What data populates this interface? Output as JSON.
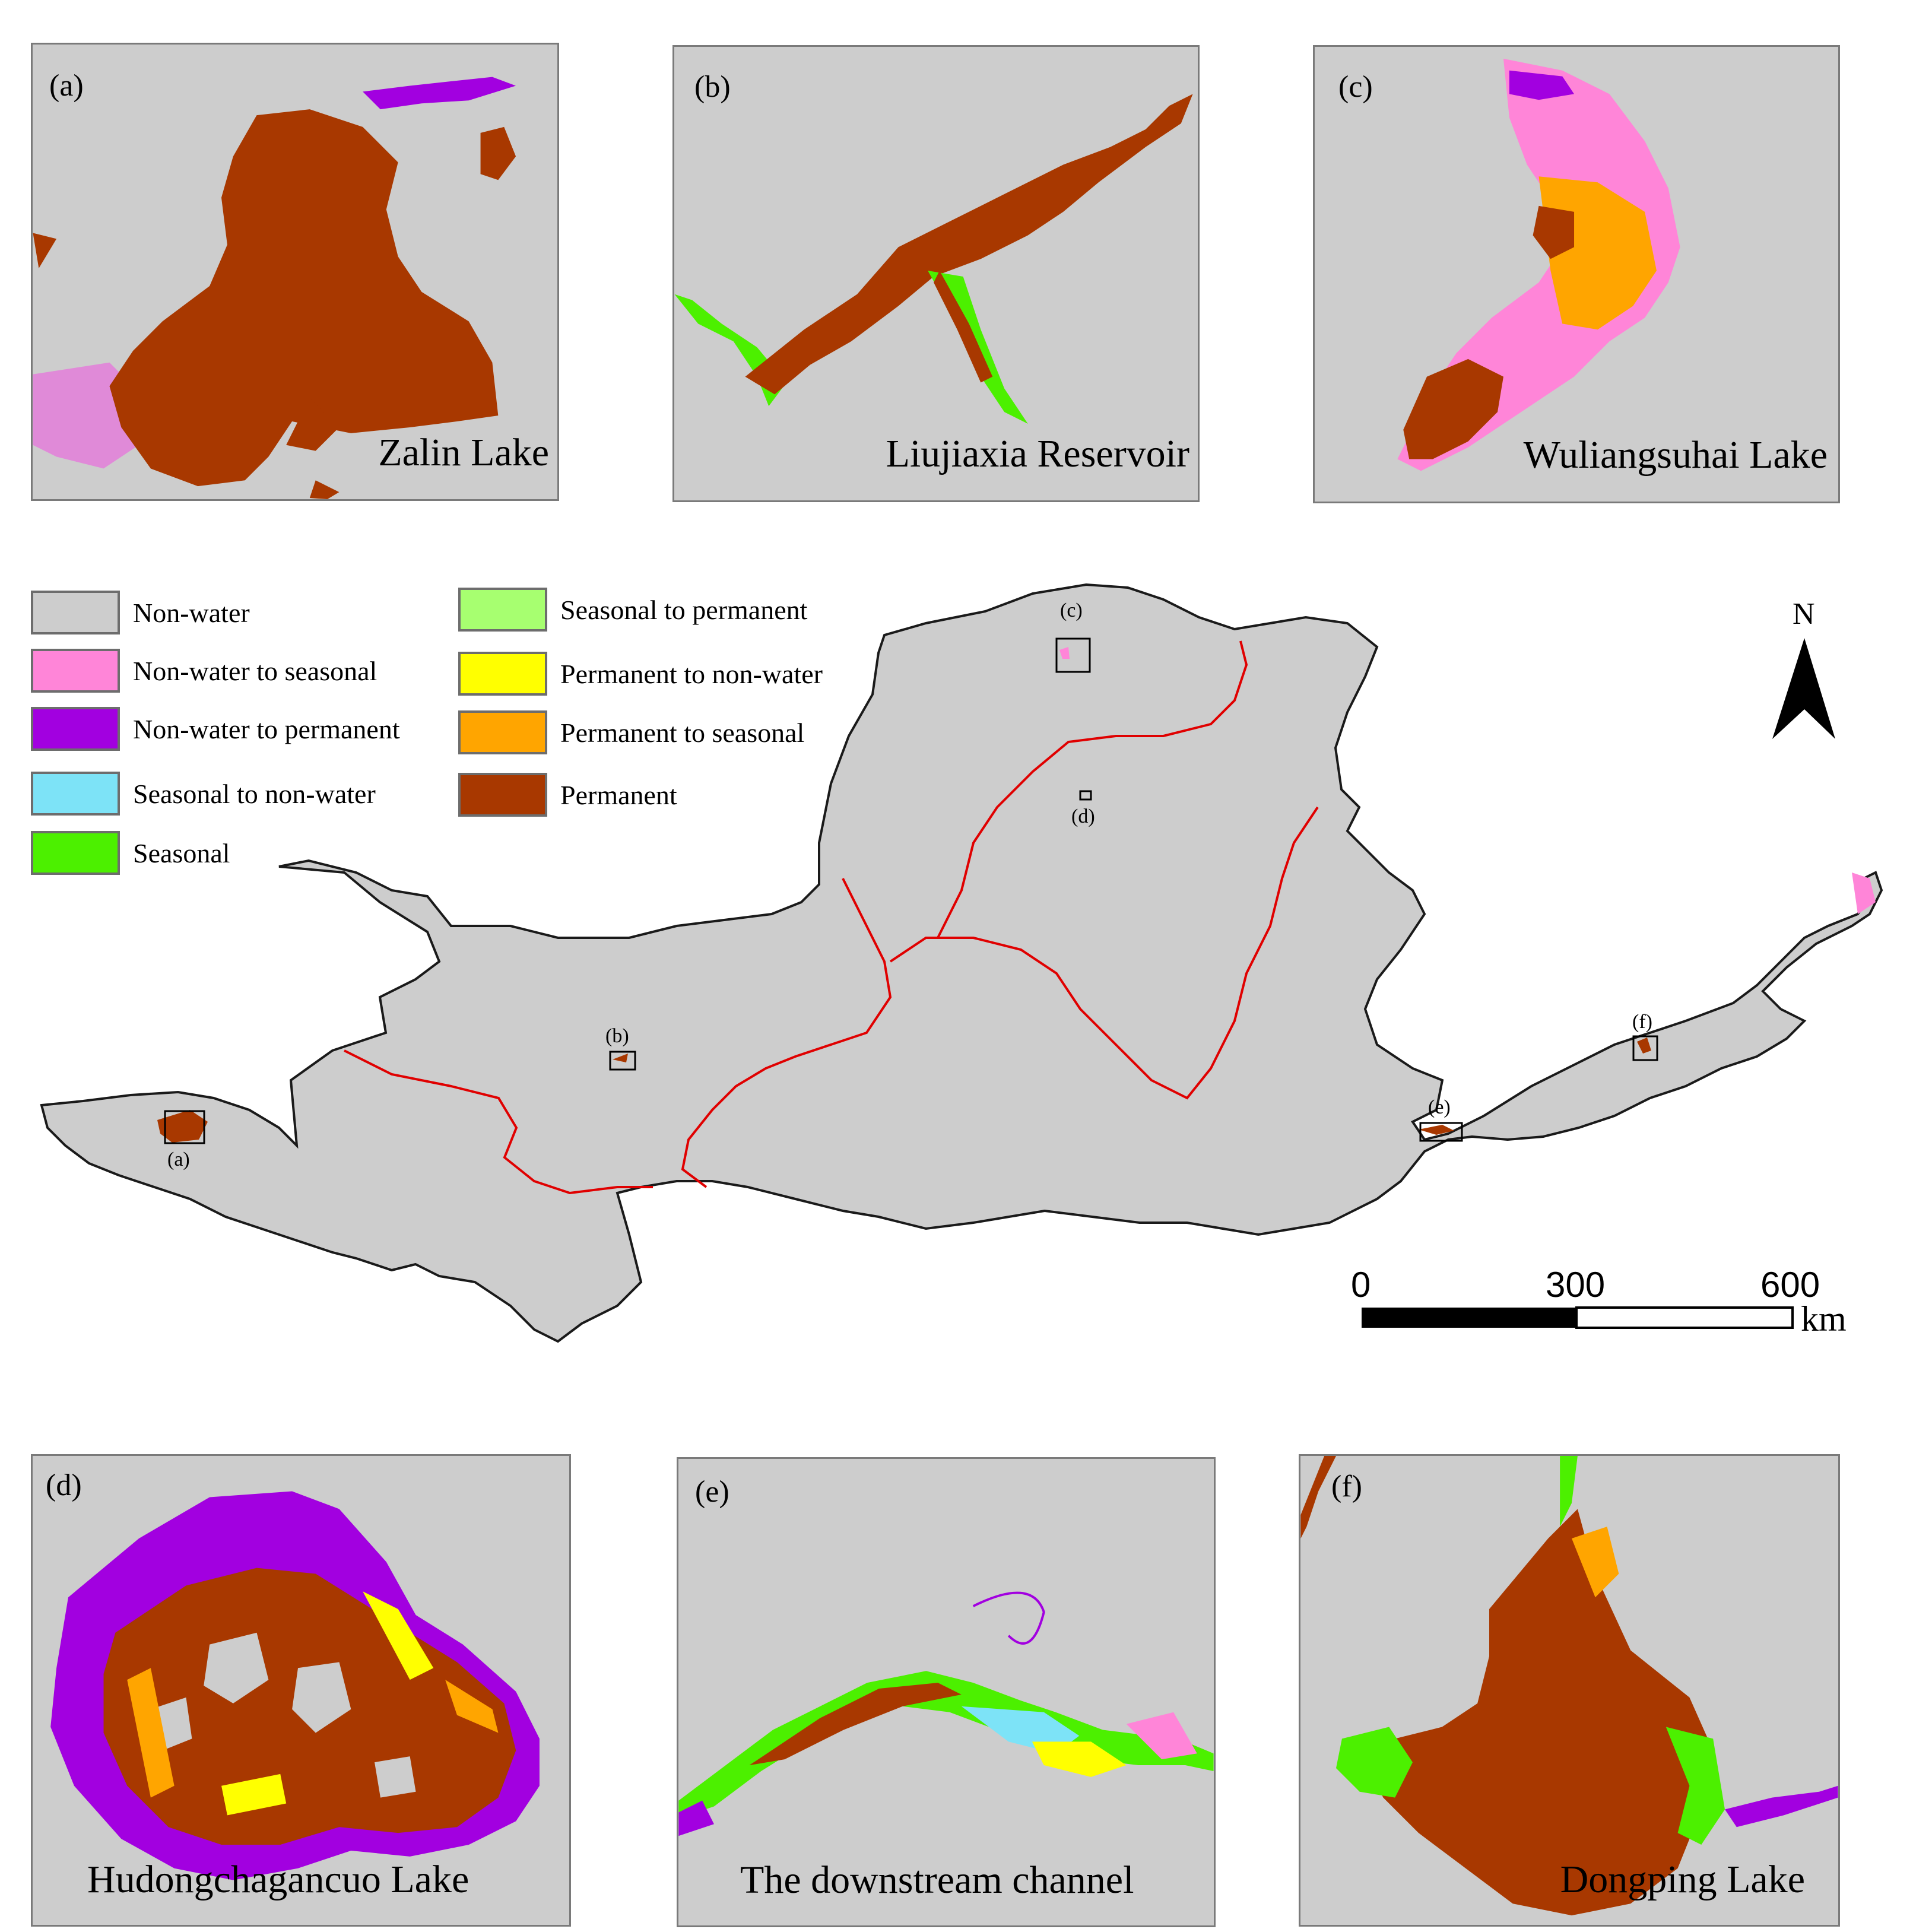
{
  "panels_top": [
    {
      "tag": "(a)",
      "name": "Zalin Lake"
    },
    {
      "tag": "(b)",
      "name": "Liujiaxia Reservoir"
    },
    {
      "tag": "(c)",
      "name": "Wuliangsuhai Lake"
    }
  ],
  "panels_bottom": [
    {
      "tag": "(d)",
      "name": "Hudongchagancuo Lake"
    },
    {
      "tag": "(e)",
      "name": "The downstream channel"
    },
    {
      "tag": "(f)",
      "name": "Dongping Lake"
    }
  ],
  "legend": [
    {
      "label": "Non-water",
      "color": "#cdcdcd"
    },
    {
      "label": "Non-water to seasonal",
      "color": "#ff85d8"
    },
    {
      "label": "Non-water to permanent",
      "color": "#a200e0"
    },
    {
      "label": "Seasonal to non-water",
      "color": "#7de3f7"
    },
    {
      "label": "Seasonal",
      "color": "#4cf000"
    },
    {
      "label": "Seasonal to permanent",
      "color": "#a7ff70"
    },
    {
      "label": "Permanent to non-water",
      "color": "#ffff00"
    },
    {
      "label": "Permanent to seasonal",
      "color": "#ffa500"
    },
    {
      "label": "Permanent",
      "color": "#a83800"
    }
  ],
  "map": {
    "markers": [
      "(a)",
      "(b)",
      "(c)",
      "(d)",
      "(e)",
      "(f)"
    ],
    "north": "N",
    "scale": {
      "ticks": [
        "0",
        "300",
        "600"
      ],
      "unit": "km"
    },
    "colors": {
      "basin": "#cdcdcd",
      "boundary": "#1a1a1a",
      "subbasin": "#e00000"
    }
  }
}
